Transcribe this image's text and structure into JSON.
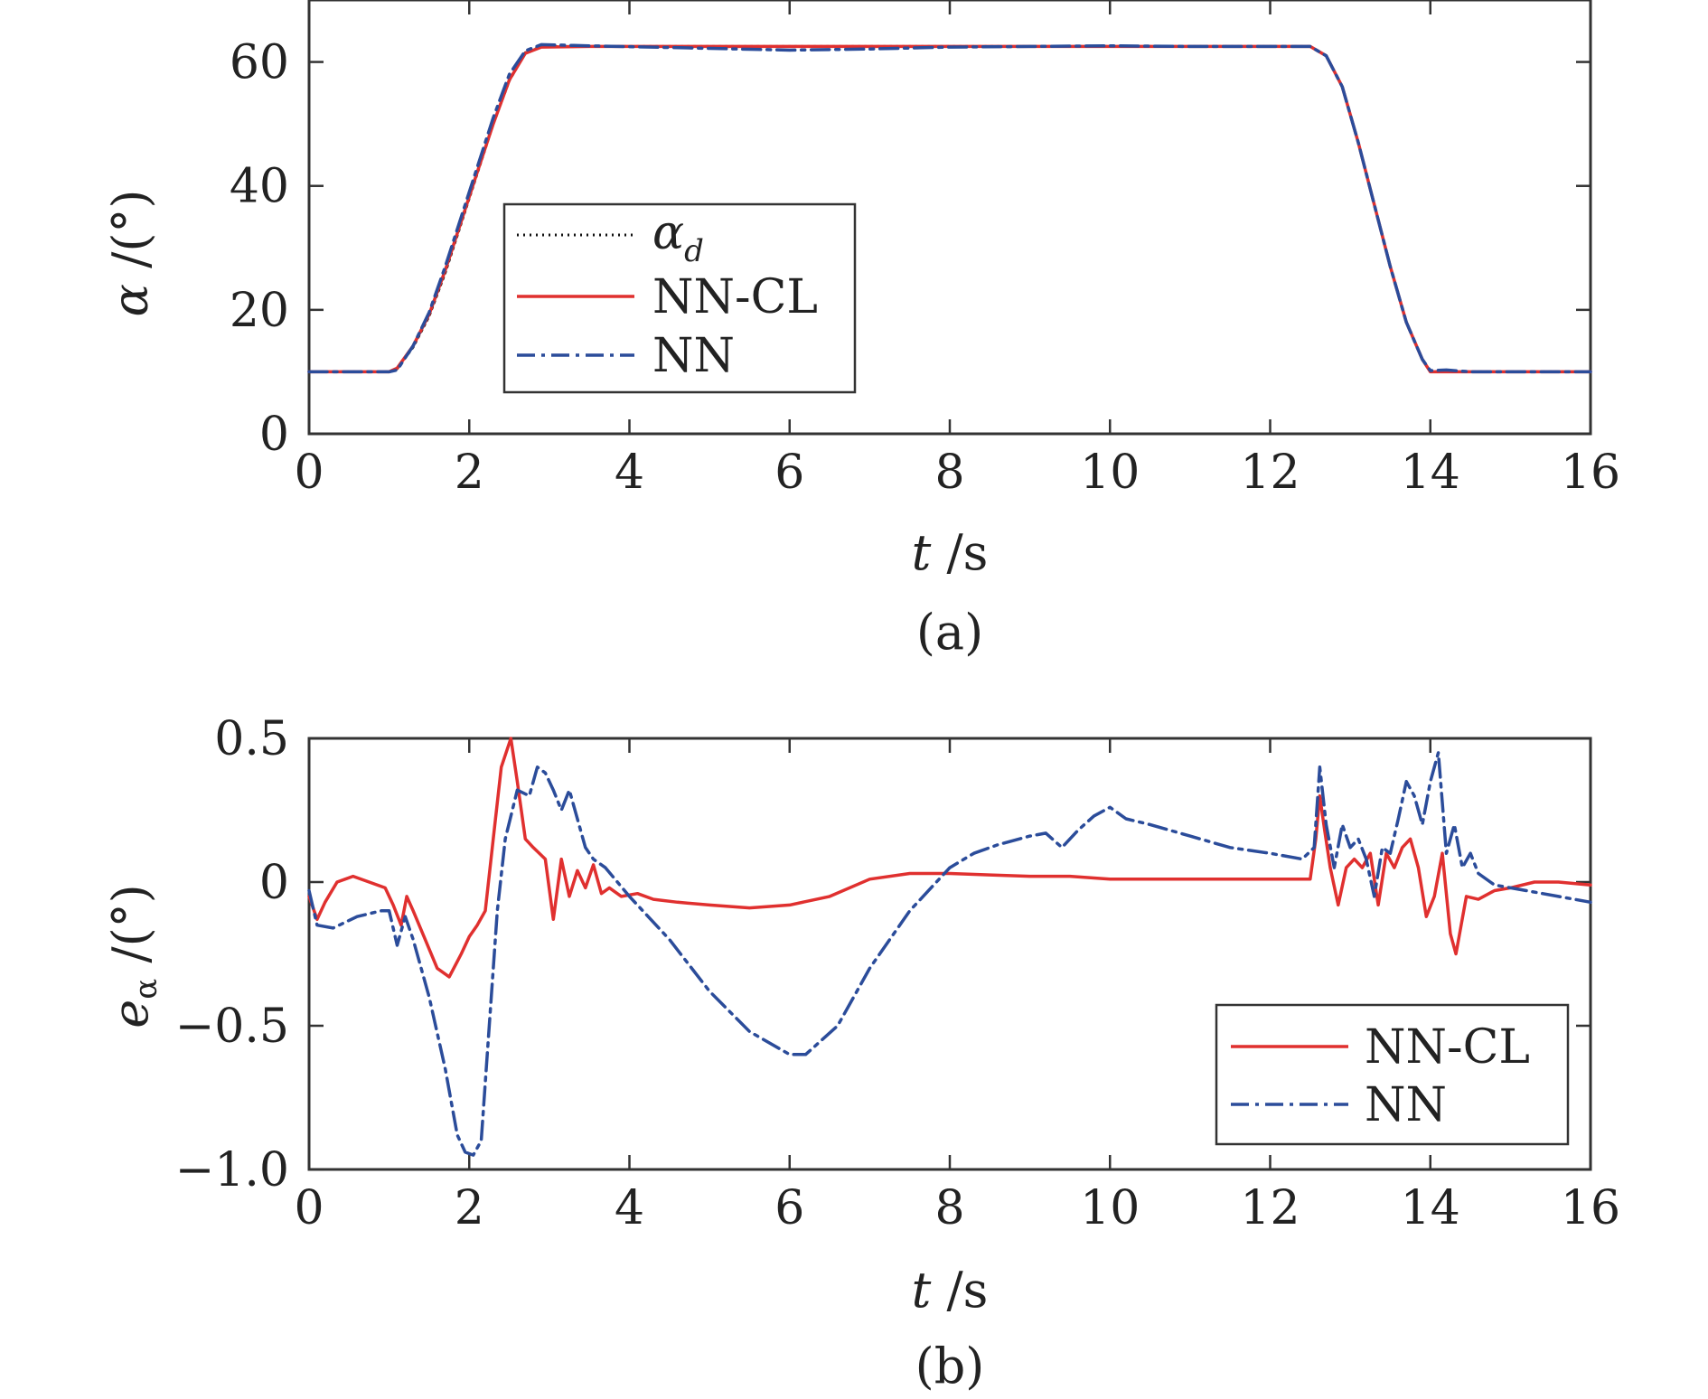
{
  "colors": {
    "alpha_d": "#111111",
    "nn_cl": "#e0302f",
    "nn": "#2b4c9a",
    "axes": "#333333"
  },
  "chart_data": [
    {
      "type": "line",
      "caption": "(a)",
      "xlabel": "t /s",
      "xlabel_parts": {
        "var": "t",
        "unit": " /s"
      },
      "ylabel": "α /(°)",
      "ylabel_parts": {
        "var": "α",
        "unit": " /(°)"
      },
      "xlim": [
        0,
        16
      ],
      "ylim": [
        0,
        70
      ],
      "xticks": [
        0,
        2,
        4,
        6,
        8,
        10,
        12,
        14,
        16
      ],
      "xtick_labels": [
        "0",
        "2",
        "4",
        "6",
        "8",
        "10",
        "12",
        "14",
        "16"
      ],
      "yticks": [
        0,
        20,
        40,
        60
      ],
      "ytick_labels": [
        "0",
        "20",
        "40",
        "60"
      ],
      "grid": false,
      "legend_position": "center-left",
      "series": [
        {
          "name": "α_d",
          "legend_label": {
            "main": "α",
            "sub": "d"
          },
          "style": "dotted",
          "x": [
            0,
            0.5,
            1.0,
            1.1,
            1.3,
            1.5,
            1.7,
            1.9,
            2.1,
            2.3,
            2.5,
            2.7,
            2.9,
            3.5,
            5,
            7,
            9,
            11,
            12.5,
            12.7,
            12.9,
            13.1,
            13.3,
            13.5,
            13.7,
            13.9,
            14.0,
            14.5,
            15,
            16
          ],
          "y": [
            10,
            10,
            10,
            10.5,
            14,
            19,
            26,
            34,
            42,
            50,
            57,
            61.5,
            62.5,
            62.5,
            62.5,
            62.5,
            62.5,
            62.5,
            62.5,
            61,
            56,
            47,
            37,
            27,
            18,
            12,
            10,
            10,
            10,
            10
          ]
        },
        {
          "name": "NN-CL",
          "style": "solid",
          "x": [
            0,
            0.5,
            1.0,
            1.1,
            1.3,
            1.5,
            1.7,
            1.9,
            2.1,
            2.3,
            2.5,
            2.7,
            2.9,
            3.5,
            5,
            7,
            9,
            11,
            12.5,
            12.7,
            12.9,
            13.1,
            13.3,
            13.5,
            13.7,
            13.9,
            14.0,
            14.5,
            15,
            16
          ],
          "y": [
            10,
            10,
            10,
            10.6,
            14.2,
            19.3,
            26.4,
            34.3,
            42.2,
            50,
            57.1,
            61.4,
            62.4,
            62.5,
            62.5,
            62.5,
            62.5,
            62.5,
            62.5,
            61,
            56,
            47,
            37,
            27,
            18,
            12,
            10,
            10,
            10,
            10
          ]
        },
        {
          "name": "NN",
          "style": "dashdot",
          "x": [
            0,
            0.5,
            1.0,
            1.1,
            1.3,
            1.5,
            1.7,
            1.9,
            2.1,
            2.3,
            2.5,
            2.7,
            2.9,
            3.5,
            5,
            6,
            7,
            8,
            9,
            10,
            11,
            12.5,
            12.7,
            12.9,
            13.1,
            13.3,
            13.5,
            13.7,
            13.9,
            14.0,
            14.2,
            14.5,
            15,
            16
          ],
          "y": [
            10,
            10,
            10,
            10.3,
            14.2,
            19.6,
            27,
            35,
            43,
            51,
            58,
            61.8,
            62.8,
            62.6,
            62.2,
            61.9,
            62.1,
            62.4,
            62.5,
            62.6,
            62.5,
            62.5,
            61,
            56,
            47,
            37,
            27,
            18,
            12,
            10.2,
            10.3,
            10,
            10,
            10
          ]
        }
      ]
    },
    {
      "type": "line",
      "caption": "(b)",
      "xlabel": "t /s",
      "xlabel_parts": {
        "var": "t",
        "unit": " /s"
      },
      "ylabel": "eα /(°)",
      "ylabel_parts": {
        "var": "e",
        "sub": "α",
        "unit": " /(°)"
      },
      "xlim": [
        0,
        16
      ],
      "ylim": [
        -1.0,
        0.5
      ],
      "xticks": [
        0,
        2,
        4,
        6,
        8,
        10,
        12,
        14,
        16
      ],
      "xtick_labels": [
        "0",
        "2",
        "4",
        "6",
        "8",
        "10",
        "12",
        "14",
        "16"
      ],
      "yticks": [
        -1.0,
        -0.5,
        0,
        0.5
      ],
      "ytick_labels": [
        "−1.0",
        "−0.5",
        "0",
        "0.5"
      ],
      "grid": false,
      "legend_position": "bottom-right",
      "series": [
        {
          "name": "NN-CL",
          "style": "solid",
          "x": [
            0,
            0.1,
            0.2,
            0.35,
            0.55,
            0.75,
            0.95,
            1.05,
            1.15,
            1.22,
            1.3,
            1.45,
            1.6,
            1.75,
            1.9,
            2.0,
            2.1,
            2.2,
            2.3,
            2.4,
            2.52,
            2.6,
            2.7,
            2.8,
            2.95,
            3.05,
            3.15,
            3.25,
            3.35,
            3.45,
            3.55,
            3.65,
            3.75,
            3.9,
            4.1,
            4.3,
            4.6,
            5.0,
            5.5,
            6.0,
            6.5,
            7.0,
            7.5,
            8.0,
            8.5,
            9.0,
            9.5,
            10.0,
            11.0,
            12.0,
            12.5,
            12.57,
            12.62,
            12.68,
            12.75,
            12.85,
            12.95,
            13.05,
            13.15,
            13.25,
            13.35,
            13.45,
            13.55,
            13.65,
            13.75,
            13.85,
            13.95,
            14.05,
            14.15,
            14.25,
            14.32,
            14.45,
            14.6,
            14.8,
            15.0,
            15.3,
            15.6,
            16.0
          ],
          "y": [
            -0.05,
            -0.13,
            -0.07,
            0,
            0.02,
            0,
            -0.02,
            -0.08,
            -0.15,
            -0.05,
            -0.1,
            -0.2,
            -0.3,
            -0.33,
            -0.25,
            -0.19,
            -0.15,
            -0.1,
            0.15,
            0.4,
            0.5,
            0.35,
            0.15,
            0.12,
            0.08,
            -0.13,
            0.08,
            -0.05,
            0.04,
            -0.02,
            0.06,
            -0.04,
            -0.02,
            -0.05,
            -0.04,
            -0.06,
            -0.07,
            -0.08,
            -0.09,
            -0.08,
            -0.05,
            0.01,
            0.03,
            0.03,
            0.025,
            0.02,
            0.02,
            0.01,
            0.01,
            0.01,
            0.01,
            0.15,
            0.3,
            0.18,
            0.05,
            -0.08,
            0.05,
            0.08,
            0.05,
            0.1,
            -0.08,
            0.1,
            0.05,
            0.12,
            0.15,
            0.05,
            -0.12,
            -0.05,
            0.1,
            -0.18,
            -0.25,
            -0.05,
            -0.06,
            -0.03,
            -0.02,
            0,
            0,
            -0.01
          ]
        },
        {
          "name": "NN",
          "style": "dashdot",
          "x": [
            0,
            0.1,
            0.3,
            0.6,
            0.9,
            1.0,
            1.1,
            1.2,
            1.3,
            1.5,
            1.7,
            1.85,
            1.95,
            2.05,
            2.15,
            2.25,
            2.35,
            2.45,
            2.6,
            2.75,
            2.85,
            2.95,
            3.05,
            3.15,
            3.25,
            3.35,
            3.45,
            3.55,
            3.7,
            4.0,
            4.5,
            5.0,
            5.5,
            6.0,
            6.2,
            6.6,
            7.0,
            7.5,
            8.0,
            8.3,
            8.6,
            9.0,
            9.2,
            9.4,
            9.6,
            9.8,
            10.0,
            10.2,
            10.5,
            11.0,
            11.5,
            12.0,
            12.4,
            12.55,
            12.62,
            12.7,
            12.8,
            12.9,
            13.0,
            13.1,
            13.2,
            13.3,
            13.4,
            13.5,
            13.6,
            13.7,
            13.8,
            13.9,
            14.0,
            14.1,
            14.2,
            14.3,
            14.4,
            14.5,
            14.6,
            14.8,
            15.2,
            15.6,
            16.0
          ],
          "y": [
            -0.03,
            -0.15,
            -0.16,
            -0.12,
            -0.1,
            -0.1,
            -0.22,
            -0.12,
            -0.2,
            -0.4,
            -0.65,
            -0.88,
            -0.94,
            -0.95,
            -0.9,
            -0.5,
            -0.1,
            0.15,
            0.32,
            0.3,
            0.4,
            0.38,
            0.32,
            0.25,
            0.32,
            0.22,
            0.12,
            0.08,
            0.05,
            -0.05,
            -0.2,
            -0.38,
            -0.52,
            -0.6,
            -0.6,
            -0.5,
            -0.3,
            -0.1,
            0.05,
            0.1,
            0.13,
            0.16,
            0.17,
            0.12,
            0.18,
            0.23,
            0.26,
            0.22,
            0.2,
            0.16,
            0.12,
            0.1,
            0.08,
            0.12,
            0.4,
            0.2,
            0.05,
            0.2,
            0.12,
            0.15,
            0.08,
            -0.05,
            0.12,
            0.1,
            0.22,
            0.35,
            0.3,
            0.2,
            0.35,
            0.45,
            0.1,
            0.2,
            0.05,
            0.1,
            0.03,
            -0.01,
            -0.03,
            -0.05,
            -0.07
          ]
        }
      ]
    }
  ]
}
